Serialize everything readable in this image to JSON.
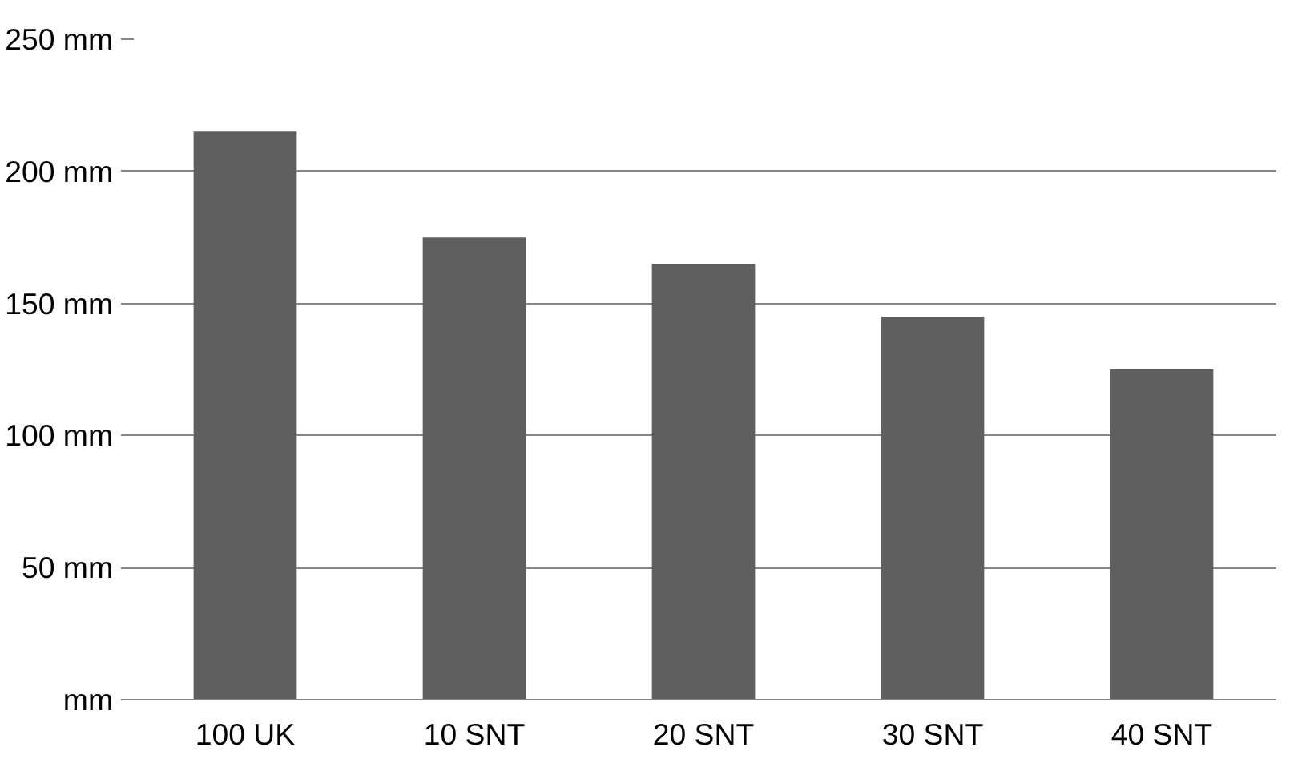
{
  "chart_data": {
    "type": "bar",
    "categories": [
      "100 UK",
      "10 SNT",
      "20 SNT",
      "30 SNT",
      "40 SNT"
    ],
    "values": [
      215,
      175,
      165,
      145,
      125
    ],
    "color": "#5f5f5f",
    "ylim": [
      0,
      250
    ],
    "yticks": [
      {
        "value": 0,
        "label": "mm"
      },
      {
        "value": 50,
        "label": "50 mm"
      },
      {
        "value": 100,
        "label": "100 mm"
      },
      {
        "value": 150,
        "label": "150 mm"
      },
      {
        "value": 200,
        "label": "200 mm"
      },
      {
        "value": 250,
        "label": "250 mm"
      }
    ],
    "grid": "y"
  }
}
